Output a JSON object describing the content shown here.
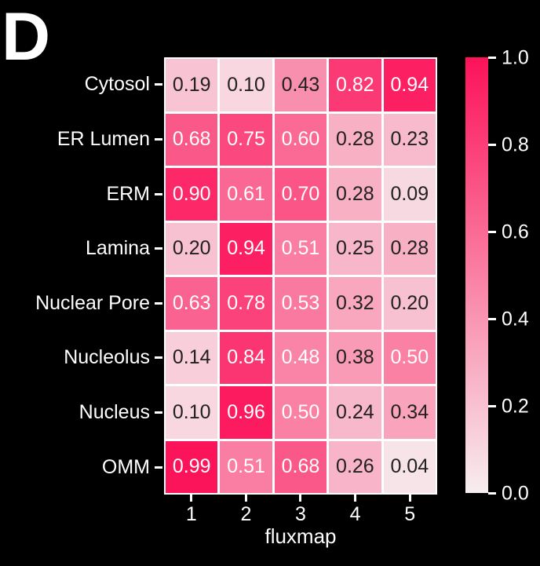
{
  "panel_label": "D",
  "colors": {
    "background": "#000000",
    "grid_line": "#ffffff",
    "annot_light": "#ffffff",
    "annot_dark": "#212121",
    "axis_text": "#ffffff",
    "cmap_low": "#f7edef",
    "cmap_high": "#fc1259"
  },
  "chart_data": {
    "type": "heatmap",
    "title": "",
    "xlabel": "fluxmap",
    "ylabel": "",
    "x_categories": [
      "1",
      "2",
      "3",
      "4",
      "5"
    ],
    "y_categories": [
      "Cytosol",
      "ER Lumen",
      "ERM",
      "Lamina",
      "Nuclear Pore",
      "Nucleolus",
      "Nucleus",
      "OMM"
    ],
    "values": [
      [
        0.19,
        0.1,
        0.43,
        0.82,
        0.94
      ],
      [
        0.68,
        0.75,
        0.6,
        0.28,
        0.23
      ],
      [
        0.9,
        0.61,
        0.7,
        0.28,
        0.09
      ],
      [
        0.2,
        0.94,
        0.51,
        0.25,
        0.28
      ],
      [
        0.63,
        0.78,
        0.53,
        0.32,
        0.2
      ],
      [
        0.14,
        0.84,
        0.48,
        0.38,
        0.5
      ],
      [
        0.1,
        0.96,
        0.5,
        0.24,
        0.34
      ],
      [
        0.99,
        0.51,
        0.68,
        0.26,
        0.04
      ]
    ],
    "value_min": 0.0,
    "value_max": 1.0,
    "annot_decimals": 2,
    "grid": false,
    "legend_position": "right-colorbar",
    "colorbar": {
      "tick_labels": [
        "1.0",
        "0.8",
        "0.6",
        "0.4",
        "0.2",
        "0.0"
      ],
      "min": 0.0,
      "max": 1.0
    }
  }
}
